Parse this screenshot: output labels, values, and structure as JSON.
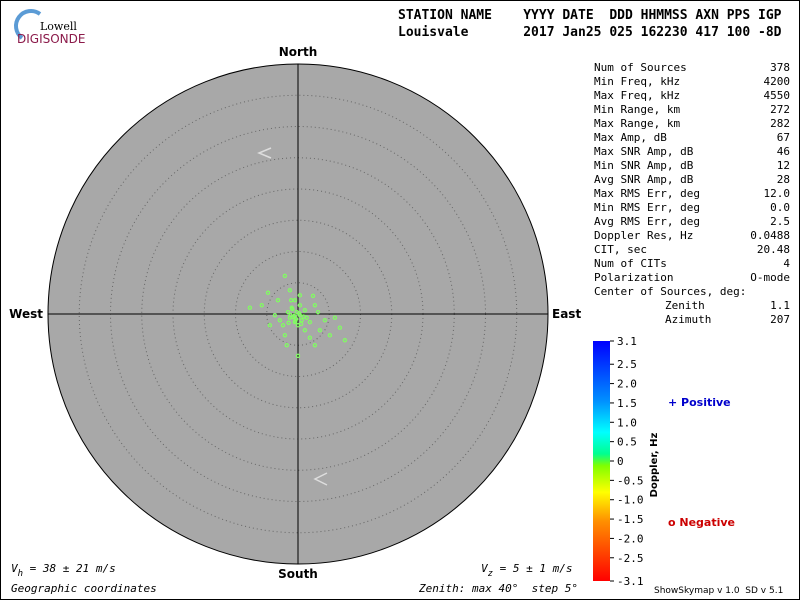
{
  "logo": {
    "top": "Lowell",
    "bottom": "DIGISONDE"
  },
  "header": {
    "line1": "STATION NAME    YYYY DATE  DDD HHMMSS AXN PPS IGP",
    "line2": "Louisvale       2017 Jan25 025 162230 417 100 -8D"
  },
  "directions": {
    "north": "North",
    "south": "South",
    "east": "East",
    "west": "West"
  },
  "stats": [
    [
      "Num of Sources",
      "378"
    ],
    [
      "Min Freq, kHz",
      "4200"
    ],
    [
      "Max Freq, kHz",
      "4550"
    ],
    [
      "Min Range, km",
      "272"
    ],
    [
      "Max Range, km",
      "282"
    ],
    [
      "Max Amp, dB",
      "67"
    ],
    [
      "Max SNR Amp, dB",
      "46"
    ],
    [
      "Min SNR Amp, dB",
      "12"
    ],
    [
      "Avg SNR Amp, dB",
      "28"
    ],
    [
      "Max RMS Err, deg",
      "12.0"
    ],
    [
      "Min RMS Err, deg",
      "0.0"
    ],
    [
      "Avg RMS Err, deg",
      "2.5"
    ],
    [
      "Doppler Res, Hz",
      "0.0488"
    ],
    [
      "CIT, sec",
      "20.48"
    ],
    [
      "Num of CITs",
      "4"
    ],
    [
      "Polarization",
      "O-mode"
    ]
  ],
  "center": {
    "title": "Center of Sources, deg:",
    "rows": [
      [
        "Zenith",
        "1.1"
      ],
      [
        "Azimuth",
        "207"
      ]
    ]
  },
  "colorbar": {
    "label": "Doppler, Hz",
    "lim": [
      -3.1,
      3.1
    ],
    "ticks": [
      3.1,
      2.5,
      {
        "value": 2,
        "label": "2.0"
      },
      1.5,
      {
        "value": 1,
        "label": "1.0"
      },
      0.5,
      0,
      -0.5,
      {
        "value": -1,
        "label": "-1.0"
      },
      -1.5,
      {
        "value": -2,
        "label": "-2.0"
      },
      -2.5,
      -3.1
    ]
  },
  "legend": {
    "positive": "+ Positive",
    "negative": "o Negative"
  },
  "zenith_max": 40,
  "ring_step": 5,
  "sources": {
    "color": "#80ff60",
    "east_deg": [
      -2.1,
      -1.3,
      -4.8,
      -7.7,
      -3.2,
      -0.5,
      2.7,
      1.1,
      0.3,
      -1.3,
      -2.9,
      -0.5,
      1.9,
      4.3,
      5.9,
      3.5,
      7.5,
      5.1,
      0,
      -1.8,
      2.7,
      1.1,
      -3.7,
      -5.8,
      0.3,
      -1.0,
      -1.6,
      0,
      0.6,
      -0.6,
      -0.2,
      -2.4,
      3.2,
      6.7,
      1.9,
      -2.1,
      -4.5,
      0.3,
      -1.1,
      2.4,
      -0.8,
      -0.3,
      -1.2,
      0.9,
      -0.4,
      0.2,
      -1.5,
      1.4,
      -0.9,
      0.5
    ],
    "north_deg": [
      6.1,
      3.8,
      3.4,
      1.0,
      2.2,
      2.2,
      1.4,
      0.6,
      -0.2,
      -0.6,
      -1.0,
      -1.3,
      -1.3,
      -1.0,
      -0.6,
      -2.6,
      -4.2,
      -3.4,
      -6.7,
      -5.0,
      -5.0,
      -2.6,
      -0.2,
      1.4,
      3.0,
      1.0,
      0.3,
      -1.8,
      -1.0,
      -0.3,
      0.3,
      -1.8,
      0.3,
      -2.2,
      -3.8,
      -3.4,
      -1.8,
      1.4,
      2.2,
      2.9,
      -0.5,
      -0.8,
      -0.2,
      -0.4,
      -1.1,
      0.1,
      -1.4,
      -0.6,
      0.8,
      -1.6
    ]
  },
  "footer": {
    "vh": {
      "symbol": "V",
      "sub": "h",
      "text": " = 38 ± 21 m/s"
    },
    "vz": {
      "symbol": "V",
      "sub": "z",
      "text": " = 5 ± 1 m/s"
    },
    "coords": "Geographic coordinates",
    "zenith": "Zenith: max 40°  step 5°",
    "version": "ShowSkymap v 1.0  SD v 5.1"
  }
}
